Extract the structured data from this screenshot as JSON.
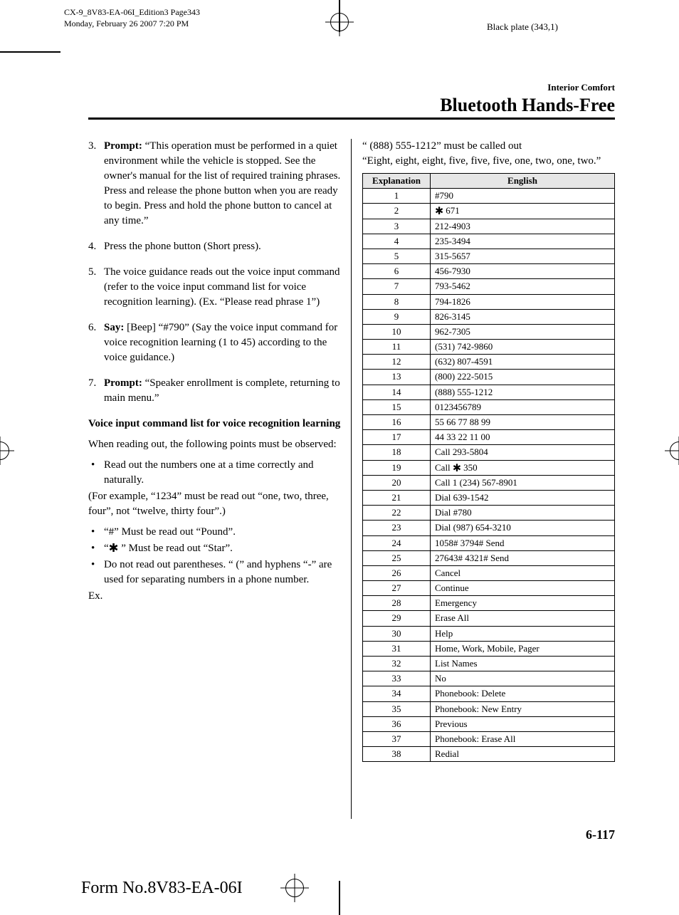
{
  "meta": {
    "file_line1": "CX-9_8V83-EA-06I_Edition3 Page343",
    "file_line2": "Monday, February 26 2007 7:20 PM",
    "black_plate": "Black plate (343,1)",
    "section_name": "Interior Comfort",
    "chapter_title": "Bluetooth Hands-Free",
    "page_number": "6-117",
    "form_number": "Form No.8V83-EA-06I"
  },
  "left_col": {
    "steps": [
      {
        "n": "3.",
        "lead": "Prompt:",
        "text": " “This operation must be performed in a quiet environment while the vehicle is stopped. See the owner's manual for the list of required training phrases. Press and release the phone button when you are ready to begin. Press and hold the phone button to cancel at any time.”"
      },
      {
        "n": "4.",
        "lead": "",
        "text": "Press the phone button (Short press)."
      },
      {
        "n": "5.",
        "lead": "",
        "text": "The voice guidance reads out the voice input command (refer to the voice input command list for voice recognition learning). (Ex. “Please read phrase 1”)"
      },
      {
        "n": "6.",
        "lead": "Say:",
        "text": " [Beep] “#790” (Say the voice input command for voice recognition learning (1 to 45) according to the voice guidance.)"
      },
      {
        "n": "7.",
        "lead": "Prompt:",
        "text": " “Speaker enrollment is complete, returning to main menu.”"
      }
    ],
    "subhead": "Voice input command list for voice recognition learning",
    "intro": "When reading out, the following points must be observed:",
    "bullet1": "Read out the numbers one at a time correctly and naturally.",
    "after1": "(For example, “1234” must be read out “one, two, three, four”, not “twelve, thirty four”.)",
    "bullet2": "“#” Must be read out “Pound”.",
    "bullet3_pre": "“",
    "bullet3_post": " ” Must be read out “Star”.",
    "bullet4": "Do not read out parentheses. “ (” and hyphens “-” are used for separating numbers in a phone number.",
    "ex": "Ex."
  },
  "right_col": {
    "intro_l1": "“ (888) 555-1212” must be called out",
    "intro_l2": "“Eight, eight, eight, five, five, five, one, two, one, two.”"
  },
  "table": {
    "header_explanation": "Explanation",
    "header_english": "English",
    "rows": [
      {
        "n": "1",
        "txt": "#790",
        "star": false
      },
      {
        "n": "2",
        "txt": " 671",
        "star": true
      },
      {
        "n": "3",
        "txt": "212-4903",
        "star": false
      },
      {
        "n": "4",
        "txt": "235-3494",
        "star": false
      },
      {
        "n": "5",
        "txt": "315-5657",
        "star": false
      },
      {
        "n": "6",
        "txt": "456-7930",
        "star": false
      },
      {
        "n": "7",
        "txt": "793-5462",
        "star": false
      },
      {
        "n": "8",
        "txt": "794-1826",
        "star": false
      },
      {
        "n": "9",
        "txt": "826-3145",
        "star": false
      },
      {
        "n": "10",
        "txt": "962-7305",
        "star": false
      },
      {
        "n": "11",
        "txt": "(531) 742-9860",
        "star": false
      },
      {
        "n": "12",
        "txt": "(632) 807-4591",
        "star": false
      },
      {
        "n": "13",
        "txt": "(800) 222-5015",
        "star": false
      },
      {
        "n": "14",
        "txt": "(888) 555-1212",
        "star": false
      },
      {
        "n": "15",
        "txt": "0123456789",
        "star": false
      },
      {
        "n": "16",
        "txt": "55 66 77 88 99",
        "star": false
      },
      {
        "n": "17",
        "txt": "44 33 22 11 00",
        "star": false
      },
      {
        "n": "18",
        "txt": "Call 293-5804",
        "star": false
      },
      {
        "n": "19",
        "txt": " 350",
        "star": true,
        "pre": "Call "
      },
      {
        "n": "20",
        "txt": "Call 1 (234) 567-8901",
        "star": false
      },
      {
        "n": "21",
        "txt": "Dial 639-1542",
        "star": false
      },
      {
        "n": "22",
        "txt": "Dial #780",
        "star": false
      },
      {
        "n": "23",
        "txt": "Dial (987) 654-3210",
        "star": false
      },
      {
        "n": "24",
        "txt": "1058# 3794# Send",
        "star": false
      },
      {
        "n": "25",
        "txt": "27643# 4321# Send",
        "star": false
      },
      {
        "n": "26",
        "txt": "Cancel",
        "star": false
      },
      {
        "n": "27",
        "txt": "Continue",
        "star": false
      },
      {
        "n": "28",
        "txt": "Emergency",
        "star": false
      },
      {
        "n": "29",
        "txt": "Erase All",
        "star": false
      },
      {
        "n": "30",
        "txt": "Help",
        "star": false
      },
      {
        "n": "31",
        "txt": "Home, Work, Mobile, Pager",
        "star": false
      },
      {
        "n": "32",
        "txt": "List Names",
        "star": false
      },
      {
        "n": "33",
        "txt": "No",
        "star": false
      },
      {
        "n": "34",
        "txt": "Phonebook: Delete",
        "star": false
      },
      {
        "n": "35",
        "txt": "Phonebook: New Entry",
        "star": false
      },
      {
        "n": "36",
        "txt": "Previous",
        "star": false
      },
      {
        "n": "37",
        "txt": "Phonebook: Erase All",
        "star": false
      },
      {
        "n": "38",
        "txt": "Redial",
        "star": false
      }
    ]
  },
  "colors": {
    "text": "#000000",
    "bg": "#ffffff",
    "th_bg": "#e6e6e6"
  }
}
